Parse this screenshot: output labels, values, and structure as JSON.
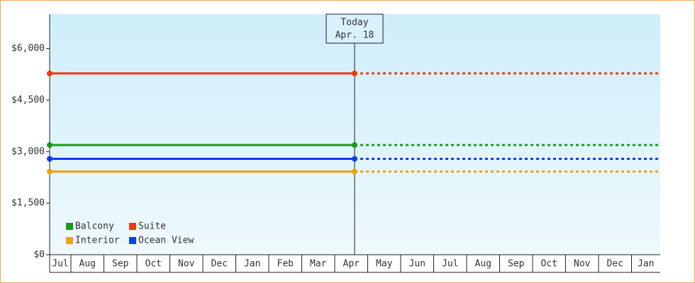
{
  "chart_data": {
    "type": "line",
    "categories": [
      "Jul",
      "Aug",
      "Sep",
      "Oct",
      "Nov",
      "Dec",
      "Jan",
      "Feb",
      "Mar",
      "Apr",
      "May",
      "Jun",
      "Jul",
      "Aug",
      "Sep",
      "Oct",
      "Nov",
      "Dec",
      "Jan"
    ],
    "series": [
      {
        "name": "Balcony",
        "color": "#1a9a1a",
        "value": 3190
      },
      {
        "name": "Suite",
        "color": "#ee3a0e",
        "value": 5275
      },
      {
        "name": "Interior",
        "color": "#f2a20c",
        "value": 2420
      },
      {
        "name": "Ocean View",
        "color": "#0a3ef0",
        "value": 2790
      }
    ],
    "ylim": [
      0,
      7000
    ],
    "yticks": [
      {
        "value": 0,
        "label": "$0"
      },
      {
        "value": 1500,
        "label": "$1,500"
      },
      {
        "value": 3000,
        "label": "$3,000"
      },
      {
        "value": 4500,
        "label": "$4,500"
      },
      {
        "value": 6000,
        "label": "$6,000"
      }
    ],
    "annotation": {
      "title": "Today",
      "date": "Apr. 18"
    }
  }
}
